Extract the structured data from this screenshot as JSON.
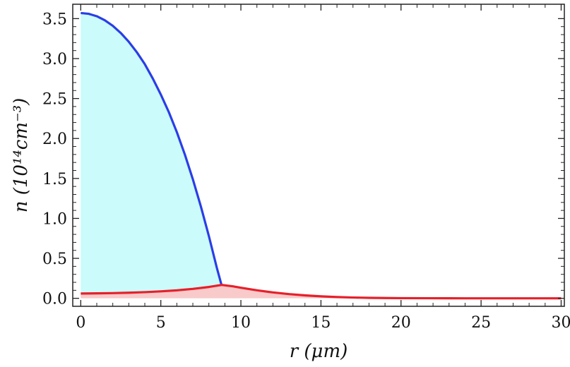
{
  "chart_data": {
    "type": "area",
    "xlabel": "r (μm)",
    "ylabel": "n (10¹⁴cm⁻³)",
    "xlim": [
      -0.5,
      30.2
    ],
    "ylim": [
      -0.1,
      3.68
    ],
    "x_ticks": [
      "0",
      "5",
      "10",
      "15",
      "20",
      "25",
      "30"
    ],
    "y_ticks": [
      "0.0",
      "0.5",
      "1.0",
      "1.5",
      "2.0",
      "2.5",
      "3.0",
      "3.5"
    ],
    "grid": false,
    "legend": "none",
    "series": [
      {
        "color": "#2a3ee6",
        "fill": "#cbfbfb",
        "x": [
          0,
          0.5,
          1,
          1.5,
          2,
          2.5,
          3,
          3.5,
          4,
          4.5,
          5,
          5.5,
          6,
          6.5,
          7,
          7.5,
          8,
          8.5,
          8.8
        ],
        "y": [
          3.57,
          3.56,
          3.53,
          3.48,
          3.41,
          3.32,
          3.21,
          3.08,
          2.93,
          2.75,
          2.55,
          2.33,
          2.08,
          1.8,
          1.49,
          1.15,
          0.78,
          0.38,
          0.16
        ]
      },
      {
        "color": "#e6202a",
        "fill": "#f9caca",
        "x": [
          0,
          1,
          2,
          3,
          4,
          5,
          6,
          7,
          8,
          8.8,
          9.5,
          10,
          11,
          12,
          13,
          14,
          15,
          16,
          17,
          18,
          19,
          20,
          22,
          24,
          26,
          28,
          30
        ],
        "y": [
          0.06,
          0.062,
          0.065,
          0.07,
          0.077,
          0.087,
          0.1,
          0.118,
          0.142,
          0.168,
          0.15,
          0.132,
          0.1,
          0.074,
          0.053,
          0.037,
          0.025,
          0.016,
          0.01,
          0.006,
          0.004,
          0.002,
          0.001,
          0.0,
          0.0,
          0.0,
          0.0
        ]
      }
    ]
  }
}
